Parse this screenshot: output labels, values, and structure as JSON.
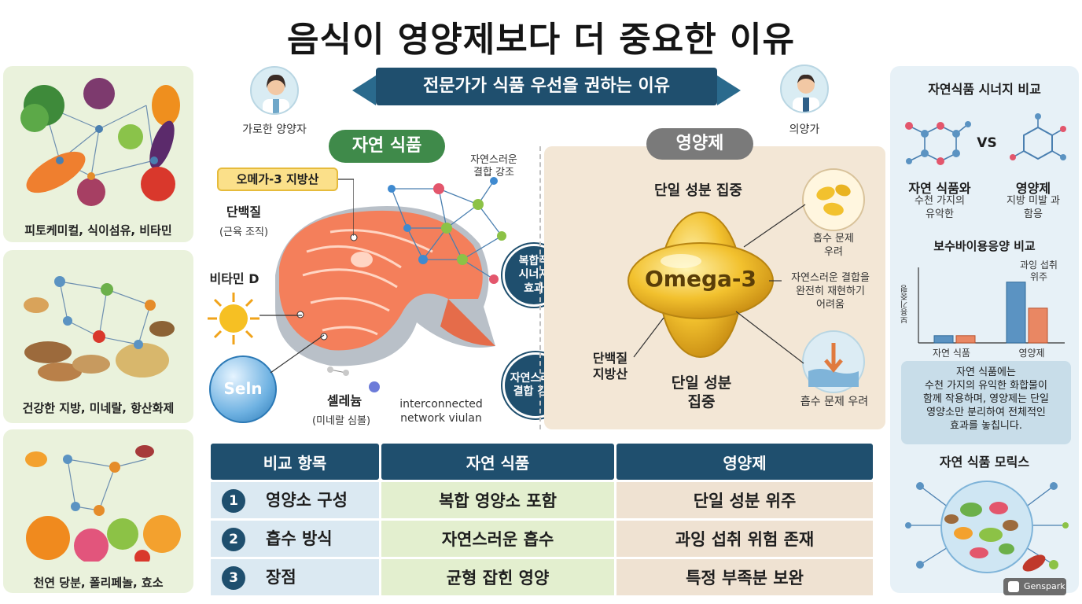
{
  "title": "음식이 영양제보다 더 중요한 이유",
  "banner": "전문가가 식품 우선을 권하는 이유",
  "experts": {
    "left": "가로한 양양자",
    "right": "의양가"
  },
  "left_panels": [
    {
      "caption": "피토케미컬, 식이섬유, 비타민"
    },
    {
      "caption": "건강한 지방, 미네랄, 항산화제"
    },
    {
      "caption": "천연 당분, 폴리페놀, 효소"
    }
  ],
  "natural_food": {
    "pill": "자연 식품",
    "omega_label": "오메가-3 지방산",
    "protein_label": "단백질",
    "protein_sub": "(근육 조직)",
    "vitamin_d": "비타민 D",
    "selenium_bubble": "Seln",
    "selenium_label": "셀레늄",
    "selenium_sub": "(미네랄 심볼)",
    "network_top": "자연스러운\n결합 강조",
    "network_caption": "interconnected\nnetwork viulan",
    "badge_synergy": "복합적\n시너지\n효과",
    "badge_combination": "자연스러운\n결합 강조"
  },
  "supplement": {
    "pill": "영양제",
    "top_label": "단일 성분 집중",
    "capsule_text": "Omega-3",
    "absorb_label": "흡수 문제\n우려",
    "combo_label": "자연스러운 결합을\n완전히 재현하기\n어려움",
    "protein_fat": "단백질\n지방산",
    "bottom_label": "단일 성분\n집중",
    "absorb_bottom": "흡수 문제 우려"
  },
  "table": {
    "headers": [
      "비교 항목",
      "자연 식품",
      "영양제"
    ],
    "rows": [
      {
        "num": "1",
        "item": "영양소 구성",
        "food": "복합 영양소 포함",
        "supp": "단일 성분 위주"
      },
      {
        "num": "2",
        "item": "흡수 방식",
        "food": "자연스러운 흡수",
        "supp": "과잉 섭취 위험 존재"
      },
      {
        "num": "3",
        "item": "장점",
        "food": "균형 잡힌 영양",
        "supp": "특정 부족분 보완"
      }
    ]
  },
  "right": {
    "synergy_title": "자연식품 시너지 비교",
    "vs": "VS",
    "food_title": "자연 식품와",
    "food_sub": "수천 가지의\n유악한",
    "supp_title": "영양제",
    "supp_sub": "지방 미발 과\n함응",
    "bio_title": "보수바이용응양 비교",
    "chart_ylabel": "보용기중평",
    "chart_annotation": "과잉 섭취\n위주",
    "textbox": "자연 식품에는\n수천 가지의 유익한 화합물이\n함께 작용하며, 영양제는 단일\n영양소만 분리하여 전체적인\n효과를 놓칩니다.",
    "matrix_title": "자연 식품 모릭스"
  },
  "chart_data": {
    "type": "bar",
    "categories": [
      "자연 식품",
      "영양제"
    ],
    "series": [
      {
        "values": [
          1,
          8.4
        ]
      },
      {
        "values": [
          1,
          4.8
        ]
      }
    ],
    "ylabel": "보용기중평",
    "colors": [
      "#5b93c2",
      "#e98763"
    ]
  },
  "watermark": "Genspark",
  "colors": {
    "navy": "#1f4f6e",
    "green": "#3f8a4a",
    "gray": "#7a7a7a",
    "salmon": "#f08a5d",
    "gold": "#e9b321"
  }
}
